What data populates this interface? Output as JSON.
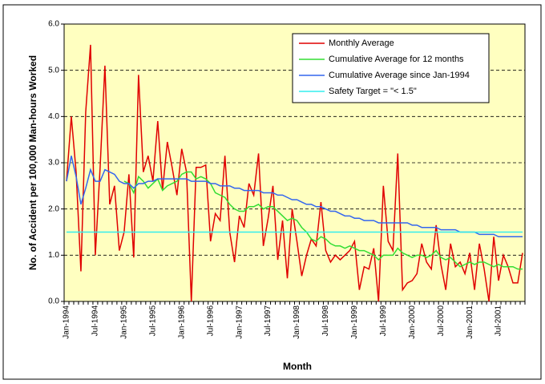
{
  "chart_data": {
    "type": "line",
    "y_label": "No. of Accident per 100,000 Man-hours Worked",
    "x_label": "Month",
    "categories": [
      "Jan-1994",
      null,
      null,
      null,
      null,
      null,
      "Jul-1994",
      null,
      null,
      null,
      null,
      null,
      "Jan-1995",
      null,
      null,
      null,
      null,
      null,
      "Jul-1995",
      null,
      null,
      null,
      null,
      null,
      "Jan-1996",
      null,
      null,
      null,
      null,
      null,
      "Jul-1996",
      null,
      null,
      null,
      null,
      null,
      "Jan-1997",
      null,
      null,
      null,
      null,
      null,
      "Jul-1997",
      null,
      null,
      null,
      null,
      null,
      "Jan-1998",
      null,
      null,
      null,
      null,
      null,
      "Jul-1998",
      null,
      null,
      null,
      null,
      null,
      "Jan-1999",
      null,
      null,
      null,
      null,
      null,
      "Jul-1999",
      null,
      null,
      null,
      null,
      null,
      "Jan-2000",
      null,
      null,
      null,
      null,
      null,
      "Jul-2000",
      null,
      null,
      null,
      null,
      null,
      "Jan-2001",
      null,
      null,
      null,
      null,
      null,
      "Jul-2001",
      null,
      null,
      null,
      null,
      null
    ],
    "series": [
      {
        "name": "Monthly Average",
        "color": "#e00000",
        "values": [
          2.6,
          4.0,
          2.8,
          0.65,
          4.1,
          5.55,
          1.0,
          2.9,
          5.1,
          2.1,
          2.5,
          1.1,
          1.5,
          2.75,
          0.95,
          4.9,
          2.8,
          3.15,
          2.6,
          3.9,
          2.4,
          3.45,
          2.9,
          2.3,
          3.3,
          2.8,
          0.0,
          2.9,
          2.9,
          2.95,
          1.3,
          1.9,
          1.75,
          3.15,
          1.5,
          0.85,
          1.85,
          1.6,
          2.55,
          2.3,
          3.2,
          1.2,
          1.8,
          2.5,
          0.9,
          1.75,
          0.5,
          2.0,
          1.3,
          0.55,
          1.0,
          1.35,
          1.2,
          2.15,
          1.1,
          0.85,
          1.0,
          0.9,
          1.0,
          1.1,
          1.3,
          0.25,
          0.75,
          0.7,
          1.15,
          0.0,
          2.5,
          1.3,
          1.1,
          3.2,
          0.25,
          0.4,
          0.45,
          0.6,
          1.25,
          0.85,
          0.7,
          1.65,
          0.8,
          0.25,
          1.25,
          0.75,
          0.85,
          0.6,
          1.05,
          0.25,
          1.25,
          0.7,
          0.0,
          1.4,
          0.45,
          1.0,
          0.75,
          0.4,
          0.4,
          1.05
        ]
      },
      {
        "name": "Cumulative Average for 12 months",
        "color": "#33dd33",
        "values": [
          null,
          null,
          null,
          null,
          null,
          null,
          null,
          null,
          null,
          null,
          null,
          null,
          2.6,
          2.55,
          2.35,
          2.7,
          2.6,
          2.45,
          2.55,
          2.65,
          2.4,
          2.5,
          2.55,
          2.6,
          2.75,
          2.8,
          2.8,
          2.65,
          2.7,
          2.65,
          2.55,
          2.35,
          2.3,
          2.25,
          2.1,
          2.0,
          1.95,
          1.95,
          2.05,
          2.05,
          2.1,
          2.0,
          2.05,
          2.05,
          1.95,
          1.85,
          1.75,
          1.8,
          1.75,
          1.6,
          1.5,
          1.35,
          1.3,
          1.4,
          1.35,
          1.25,
          1.2,
          1.2,
          1.15,
          1.2,
          1.15,
          1.1,
          1.1,
          1.05,
          1.0,
          0.9,
          1.0,
          1.0,
          1.0,
          1.15,
          1.05,
          1.0,
          0.95,
          1.0,
          1.0,
          0.95,
          1.0,
          1.1,
          0.95,
          0.9,
          0.95,
          0.85,
          0.75,
          0.8,
          0.85,
          0.8,
          0.85,
          0.85,
          0.8,
          0.75,
          0.8,
          0.75,
          0.75,
          0.75,
          0.7,
          0.7
        ]
      },
      {
        "name": "Cumulative Average since Jan-1994",
        "color": "#3366ee",
        "values": [
          2.6,
          3.15,
          2.7,
          2.1,
          2.45,
          2.85,
          2.6,
          2.6,
          2.85,
          2.8,
          2.75,
          2.6,
          2.55,
          2.55,
          2.45,
          2.55,
          2.55,
          2.6,
          2.6,
          2.65,
          2.65,
          2.65,
          2.65,
          2.65,
          2.65,
          2.65,
          2.6,
          2.6,
          2.6,
          2.6,
          2.55,
          2.55,
          2.5,
          2.5,
          2.5,
          2.45,
          2.45,
          2.4,
          2.4,
          2.4,
          2.4,
          2.35,
          2.35,
          2.35,
          2.3,
          2.3,
          2.25,
          2.2,
          2.2,
          2.15,
          2.1,
          2.1,
          2.05,
          2.05,
          2.0,
          1.95,
          1.95,
          1.9,
          1.85,
          1.85,
          1.8,
          1.8,
          1.75,
          1.75,
          1.75,
          1.7,
          1.7,
          1.7,
          1.7,
          1.7,
          1.7,
          1.7,
          1.65,
          1.65,
          1.6,
          1.6,
          1.6,
          1.6,
          1.55,
          1.55,
          1.55,
          1.55,
          1.5,
          1.5,
          1.5,
          1.5,
          1.45,
          1.45,
          1.45,
          1.45,
          1.4,
          1.4,
          1.4,
          1.4,
          1.4,
          1.4
        ]
      },
      {
        "name": "Safety Target = \"< 1.5\"",
        "color": "#33eeee",
        "values": [
          1.5,
          1.5,
          1.5,
          1.5,
          1.5,
          1.5,
          1.5,
          1.5,
          1.5,
          1.5,
          1.5,
          1.5,
          1.5,
          1.5,
          1.5,
          1.5,
          1.5,
          1.5,
          1.5,
          1.5,
          1.5,
          1.5,
          1.5,
          1.5,
          1.5,
          1.5,
          1.5,
          1.5,
          1.5,
          1.5,
          1.5,
          1.5,
          1.5,
          1.5,
          1.5,
          1.5,
          1.5,
          1.5,
          1.5,
          1.5,
          1.5,
          1.5,
          1.5,
          1.5,
          1.5,
          1.5,
          1.5,
          1.5,
          1.5,
          1.5,
          1.5,
          1.5,
          1.5,
          1.5,
          1.5,
          1.5,
          1.5,
          1.5,
          1.5,
          1.5,
          1.5,
          1.5,
          1.5,
          1.5,
          1.5,
          1.5,
          1.5,
          1.5,
          1.5,
          1.5,
          1.5,
          1.5,
          1.5,
          1.5,
          1.5,
          1.5,
          1.5,
          1.5,
          1.5,
          1.5,
          1.5,
          1.5,
          1.5,
          1.5,
          1.5,
          1.5,
          1.5,
          1.5,
          1.5,
          1.5,
          1.5,
          1.5,
          1.5,
          1.5,
          1.5,
          1.5
        ]
      }
    ],
    "ylim": [
      0,
      6
    ],
    "yticks": [
      {
        "value": 0,
        "label": "0.0"
      },
      {
        "value": 1,
        "label": "1.0"
      },
      {
        "value": 2,
        "label": "2.0"
      },
      {
        "value": 3,
        "label": "3.0"
      },
      {
        "value": 4,
        "label": "4.0"
      },
      {
        "value": 5,
        "label": "5.0"
      },
      {
        "value": 6,
        "label": "6.0"
      }
    ],
    "grid": true,
    "plot_background": "#ffffc0",
    "legend_position": "upper right"
  }
}
